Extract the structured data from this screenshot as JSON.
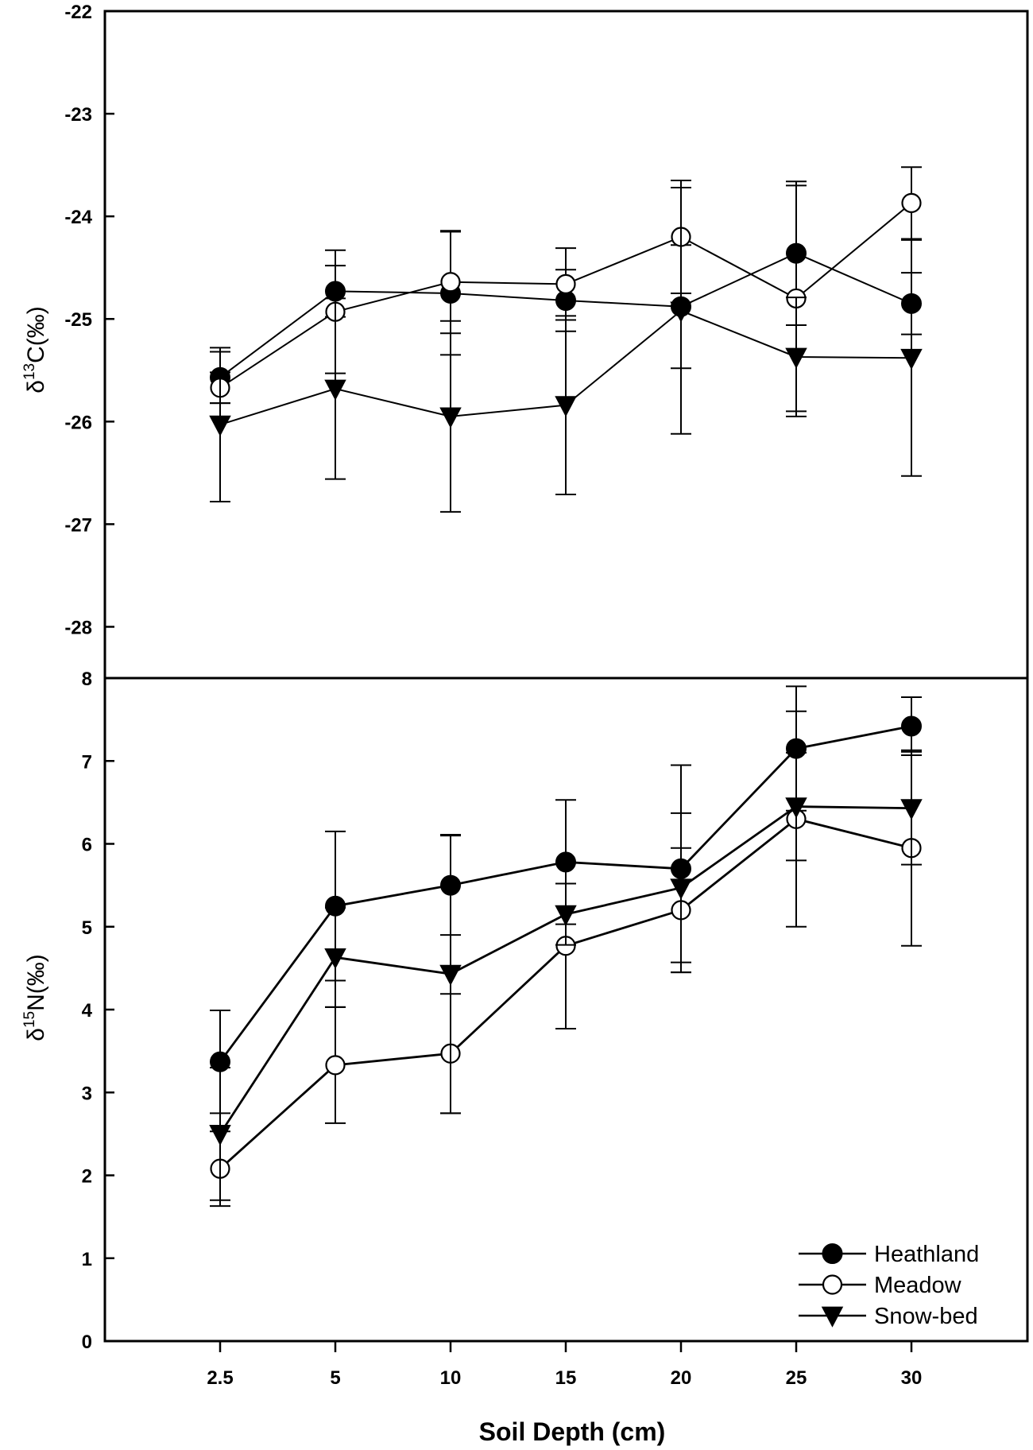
{
  "chart_data": [
    {
      "type": "line",
      "panel": "top",
      "ylabel": {
        "base": "δ",
        "sup": "13",
        "rest": "C(‰)"
      },
      "ylim": [
        -28.5,
        -22
      ],
      "yticks": [
        -22,
        -23,
        -24,
        -25,
        -26,
        -27,
        -28
      ],
      "xlabel": "",
      "categories": [
        "2.5",
        "5",
        "10",
        "15",
        "20",
        "25",
        "30"
      ],
      "series": [
        {
          "name": "Heathland",
          "marker": "filled-circle",
          "values": [
            -25.57,
            -24.73,
            -24.75,
            -24.82,
            -24.88,
            -24.36,
            -24.85
          ],
          "errors": [
            0.25,
            0.25,
            0.6,
            0.3,
            0.6,
            0.7,
            0.3
          ]
        },
        {
          "name": "Meadow",
          "marker": "open-circle",
          "values": [
            -25.67,
            -24.93,
            -24.64,
            -24.66,
            -24.2,
            -24.8,
            -23.87
          ],
          "errors": [
            0.15,
            0.6,
            0.5,
            0.35,
            0.55,
            1.1,
            0.35
          ]
        },
        {
          "name": "Snow-bed",
          "marker": "filled-triangle-down",
          "values": [
            -26.03,
            -25.68,
            -25.95,
            -25.84,
            -24.92,
            -25.37,
            -25.38
          ],
          "errors": [
            0.75,
            0.88,
            0.93,
            0.87,
            1.2,
            0.58,
            1.15
          ]
        }
      ]
    },
    {
      "type": "line",
      "panel": "bottom",
      "ylabel": {
        "base": "δ",
        "sup": "15",
        "rest": "N(‰)"
      },
      "ylim": [
        0,
        8
      ],
      "yticks": [
        0,
        1,
        2,
        3,
        4,
        5,
        6,
        7,
        8
      ],
      "xlabel": "Soil Depth (cm)",
      "categories": [
        "2.5",
        "5",
        "10",
        "15",
        "20",
        "25",
        "30"
      ],
      "legend_position": "bottom-right",
      "series": [
        {
          "name": "Heathland",
          "marker": "filled-circle",
          "values": [
            3.37,
            5.25,
            5.5,
            5.78,
            5.7,
            7.15,
            7.42
          ],
          "errors": [
            0.62,
            0.9,
            0.6,
            0.75,
            1.25,
            0.75,
            0.35
          ]
        },
        {
          "name": "Meadow",
          "marker": "open-circle",
          "values": [
            2.08,
            3.33,
            3.47,
            4.77,
            5.2,
            6.3,
            5.95
          ],
          "errors": [
            0.45,
            0.7,
            0.72,
            1.0,
            0.75,
            1.3,
            1.18
          ]
        },
        {
          "name": "Snow-bed",
          "marker": "filled-triangle-down",
          "values": [
            2.5,
            4.63,
            4.43,
            5.15,
            5.47,
            6.45,
            6.43
          ],
          "errors": [
            0.8,
            0.6,
            1.68,
            0.37,
            0.9,
            0.65,
            0.68
          ]
        }
      ]
    }
  ],
  "legend": {
    "items": [
      {
        "label": "Heathland",
        "marker": "filled-circle"
      },
      {
        "label": "Meadow",
        "marker": "open-circle"
      },
      {
        "label": "Snow-bed",
        "marker": "filled-triangle-down"
      }
    ]
  }
}
